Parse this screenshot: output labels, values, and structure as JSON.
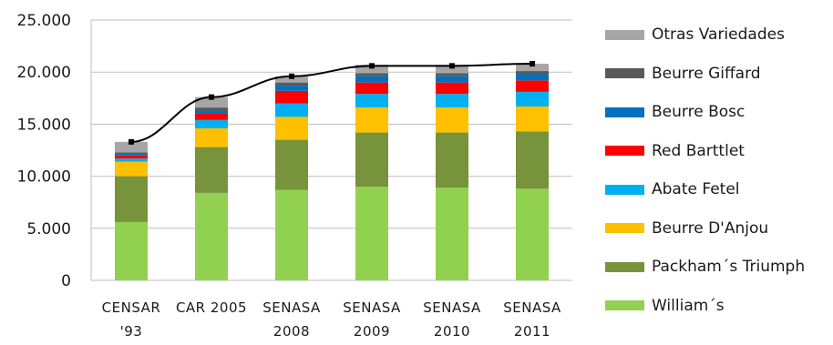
{
  "chart_data": {
    "type": "bar",
    "stacked": true,
    "categories": [
      [
        "CENSAR",
        "'93"
      ],
      [
        "CAR 2005",
        ""
      ],
      [
        "SENASA",
        "2008"
      ],
      [
        "SENASA",
        "2009"
      ],
      [
        "SENASA",
        "2010"
      ],
      [
        "SENASA",
        "2011"
      ]
    ],
    "series": [
      {
        "name": "William´s",
        "color": "#92d050",
        "values": [
          5600,
          8400,
          8700,
          9000,
          8900,
          8800
        ]
      },
      {
        "name": "Packham´s Triumph",
        "color": "#77933c",
        "values": [
          4400,
          4400,
          4800,
          5200,
          5300,
          5500
        ]
      },
      {
        "name": "Beurre D'Anjou",
        "color": "#ffc000",
        "values": [
          1400,
          1800,
          2200,
          2400,
          2400,
          2400
        ]
      },
      {
        "name": "Abate Fetel",
        "color": "#00b0f0",
        "values": [
          300,
          800,
          1300,
          1300,
          1300,
          1400
        ]
      },
      {
        "name": "Red Barttlet",
        "color": "#ff0000",
        "values": [
          300,
          600,
          1200,
          1100,
          1100,
          1100
        ]
      },
      {
        "name": "Beurre Bosc",
        "color": "#0070c0",
        "values": [
          200,
          300,
          500,
          600,
          600,
          600
        ]
      },
      {
        "name": "Beurre Giffard",
        "color": "#595959",
        "values": [
          100,
          300,
          300,
          300,
          300,
          300
        ]
      },
      {
        "name": "Otras Variedades",
        "color": "#a6a6a6",
        "values": [
          1000,
          1000,
          600,
          800,
          800,
          700
        ]
      }
    ],
    "total_line": {
      "color": "#000000",
      "values": [
        13300,
        17600,
        19600,
        20600,
        20600,
        20800
      ]
    },
    "yticks": [
      "0",
      "5.000",
      "10.000",
      "15.000",
      "20.000",
      "25.000"
    ],
    "ytick_values": [
      0,
      5000,
      10000,
      15000,
      20000,
      25000
    ],
    "ylim": [
      0,
      25000
    ],
    "grid": true,
    "legend_position": "right",
    "legend_order": [
      "Otras Variedades",
      "Beurre Giffard",
      "Beurre Bosc",
      "Red Barttlet",
      "Abate Fetel",
      "Beurre D'Anjou",
      "Packham´s Triumph",
      "William´s"
    ]
  }
}
